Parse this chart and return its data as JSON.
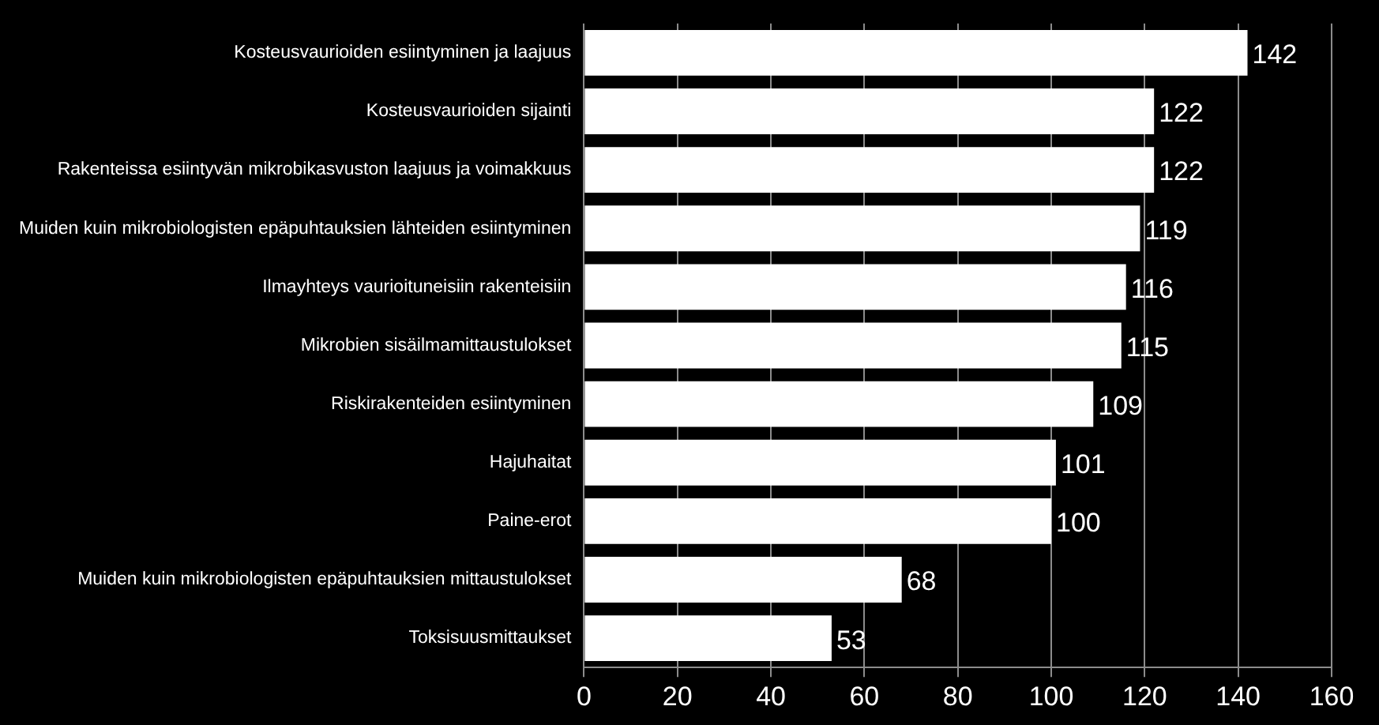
{
  "chart_data": {
    "type": "bar",
    "orientation": "horizontal",
    "categories": [
      "Kosteusvaurioiden esiintyminen ja laajuus",
      "Kosteusvaurioiden sijainti",
      "Rakenteissa esiintyvän mikrobikasvuston laajuus ja voimakkuus",
      "Muiden kuin mikrobiologisten epäpuhtauksien lähteiden esiintyminen",
      "Ilmayhteys vaurioituneisiin rakenteisiin",
      "Mikrobien sisäilmamittaustulokset",
      "Riskirakenteiden esiintyminen",
      "Hajuhaitat",
      "Paine-erot",
      "Muiden kuin mikrobiologisten epäpuhtauksien mittaustulokset",
      "Toksisuusmittaukset"
    ],
    "values": [
      142,
      122,
      122,
      119,
      116,
      115,
      109,
      101,
      100,
      68,
      53
    ],
    "color": "#ffffff",
    "xlim": [
      0,
      160
    ],
    "xticks": [
      0,
      20,
      40,
      60,
      80,
      100,
      120,
      140,
      160
    ],
    "grid": "x",
    "data_labels": true
  }
}
